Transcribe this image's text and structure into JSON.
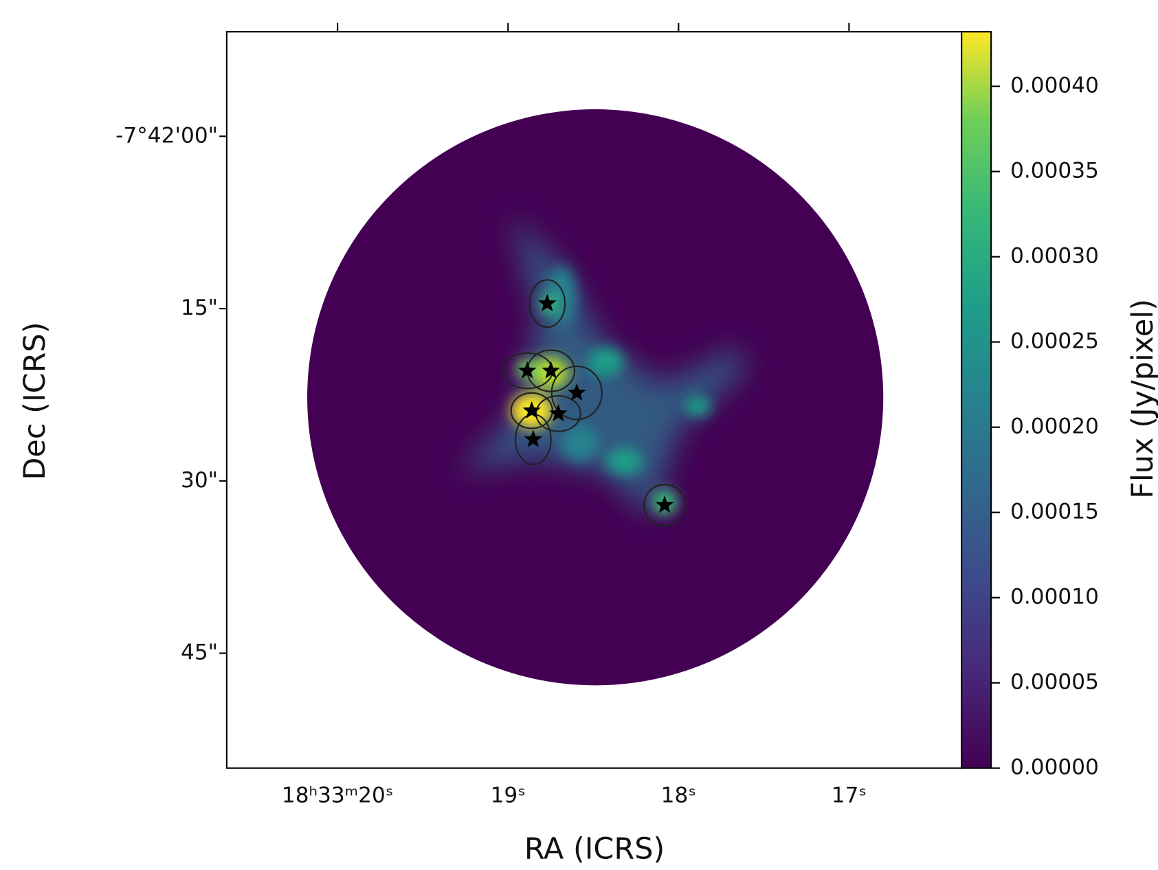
{
  "chart_data": {
    "type": "image",
    "xlabel": "RA (ICRS)",
    "ylabel": "Dec (ICRS)",
    "colorbar_label": "Flux (Jy/pixel)",
    "colormap": "viridis",
    "xlim": [
      20.65,
      16.34
    ],
    "xticks": [
      {
        "value": 20,
        "label": "18ʰ33ᵐ20ˢ"
      },
      {
        "value": 19,
        "label": "19ˢ"
      },
      {
        "value": 18,
        "label": "18ˢ"
      },
      {
        "value": 17,
        "label": "17ˢ"
      }
    ],
    "ylim": [
      55.0,
      -9.1
    ],
    "yticks": [
      {
        "value": 0,
        "label": "-7°42'00\""
      },
      {
        "value": 15,
        "label": "15\""
      },
      {
        "value": 30,
        "label": "30\""
      },
      {
        "value": 45,
        "label": "45\""
      }
    ],
    "clim": [
      0,
      0.000432
    ],
    "cticks": [
      {
        "value": 0,
        "label": "0.00000"
      },
      {
        "value": 5e-05,
        "label": "0.00005"
      },
      {
        "value": 0.0001,
        "label": "0.00010"
      },
      {
        "value": 0.00015,
        "label": "0.00015"
      },
      {
        "value": 0.0002,
        "label": "0.00020"
      },
      {
        "value": 0.00025,
        "label": "0.00025"
      },
      {
        "value": 0.0003,
        "label": "0.00030"
      },
      {
        "value": 0.00035,
        "label": "0.00035"
      },
      {
        "value": 0.0004,
        "label": "0.00040"
      }
    ]
  }
}
